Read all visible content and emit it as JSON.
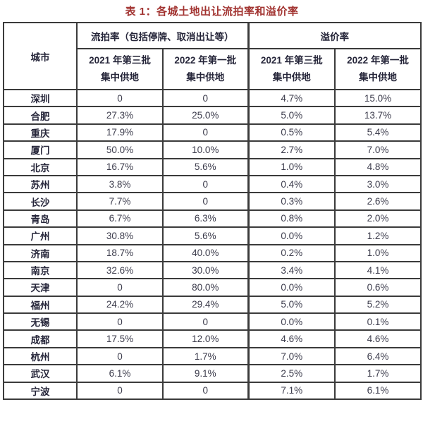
{
  "title": "表 1：各城土地出让流拍率和溢价率",
  "table": {
    "city_header": "城市",
    "group_headers": {
      "failure_rate": "流拍率（包括停牌、取消出让等）",
      "premium_rate": "溢价率"
    },
    "sub_headers": [
      {
        "line1": "2021 年第三批",
        "line2": "集中供地"
      },
      {
        "line1": "2022 年第一批",
        "line2": "集中供地"
      },
      {
        "line1": "2021 年第三批",
        "line2": "集中供地"
      },
      {
        "line1": "2022 年第一批",
        "line2": "集中供地"
      }
    ],
    "rows": [
      {
        "city": "深圳",
        "values": [
          "0",
          "0",
          "4.7%",
          "15.0%"
        ]
      },
      {
        "city": "合肥",
        "values": [
          "27.3%",
          "25.0%",
          "5.0%",
          "13.7%"
        ]
      },
      {
        "city": "重庆",
        "values": [
          "17.9%",
          "0",
          "0.5%",
          "5.4%"
        ]
      },
      {
        "city": "厦门",
        "values": [
          "50.0%",
          "10.0%",
          "2.7%",
          "7.0%"
        ]
      },
      {
        "city": "北京",
        "values": [
          "16.7%",
          "5.6%",
          "1.0%",
          "4.8%"
        ]
      },
      {
        "city": "苏州",
        "values": [
          "3.8%",
          "0",
          "0.4%",
          "3.0%"
        ]
      },
      {
        "city": "长沙",
        "values": [
          "7.7%",
          "0",
          "0.3%",
          "2.6%"
        ]
      },
      {
        "city": "青岛",
        "values": [
          "6.7%",
          "6.3%",
          "0.8%",
          "2.0%"
        ]
      },
      {
        "city": "广州",
        "values": [
          "30.8%",
          "5.6%",
          "0.0%",
          "1.2%"
        ]
      },
      {
        "city": "济南",
        "values": [
          "18.7%",
          "40.0%",
          "0.2%",
          "1.0%"
        ]
      },
      {
        "city": "南京",
        "values": [
          "32.6%",
          "30.0%",
          "3.4%",
          "4.1%"
        ]
      },
      {
        "city": "天津",
        "values": [
          "0",
          "80.0%",
          "0.0%",
          "0.6%"
        ]
      },
      {
        "city": "福州",
        "values": [
          "24.2%",
          "29.4%",
          "5.0%",
          "5.2%"
        ]
      },
      {
        "city": "无锡",
        "values": [
          "0",
          "0",
          "0.0%",
          "0.1%"
        ]
      },
      {
        "city": "成都",
        "values": [
          "17.5%",
          "12.0%",
          "4.6%",
          "4.6%"
        ]
      },
      {
        "city": "杭州",
        "values": [
          "0",
          "1.7%",
          "7.0%",
          "6.4%"
        ]
      },
      {
        "city": "武汉",
        "values": [
          "6.1%",
          "9.1%",
          "2.5%",
          "1.7%"
        ]
      },
      {
        "city": "宁波",
        "values": [
          "0",
          "0",
          "7.1%",
          "6.1%"
        ]
      }
    ]
  },
  "colors": {
    "title_red": "#a23431",
    "border": "#3b3b3b",
    "header_text": "#26263a",
    "value_text": "#3c3c4c",
    "background": "#ffffff"
  }
}
